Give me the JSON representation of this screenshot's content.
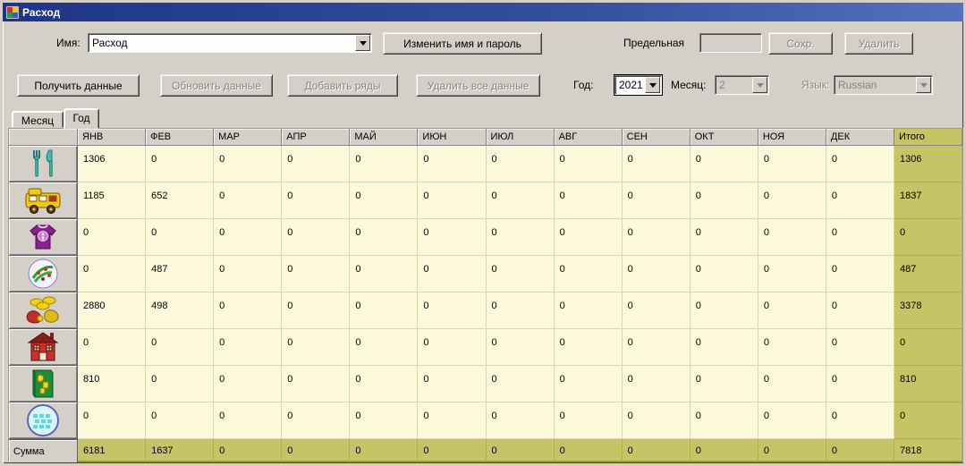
{
  "window": {
    "title": "Расход"
  },
  "toolbar": {
    "name_label": "Имя:",
    "name_value": "Расход",
    "change_name_button": "Изменить имя и пароль",
    "limit_label": "Предельная",
    "limit_value": "",
    "save_button": "Сохр.",
    "delete_button": "Удалить",
    "get_data_button": "Получить данные",
    "refresh_data_button": "Обновить данные",
    "add_rows_button": "Добавить ряды",
    "delete_all_button": "Удалить все данные",
    "year_label": "Год:",
    "year_value": "2021",
    "month_label": "Месяц:",
    "month_value": "2",
    "language_label": "Язык:",
    "language_value": "Russian"
  },
  "tabs": [
    {
      "label": "Месяц",
      "active": false
    },
    {
      "label": "Год",
      "active": true
    }
  ],
  "table": {
    "columns": [
      "ЯНВ",
      "ФЕВ",
      "МАР",
      "АПР",
      "МАЙ",
      "ИЮН",
      "ИЮЛ",
      "АВГ",
      "СЕН",
      "ОКТ",
      "НОЯ",
      "ДЕК",
      "Итого"
    ],
    "rows": [
      {
        "icon": "cutlery-icon",
        "values": [
          "1306",
          "0",
          "0",
          "0",
          "0",
          "0",
          "0",
          "0",
          "0",
          "0",
          "0",
          "0"
        ],
        "total": "1306"
      },
      {
        "icon": "bus-icon",
        "values": [
          "1185",
          "652",
          "0",
          "0",
          "0",
          "0",
          "0",
          "0",
          "0",
          "0",
          "0",
          "0"
        ],
        "total": "1837"
      },
      {
        "icon": "sweater-icon",
        "values": [
          "0",
          "0",
          "0",
          "0",
          "0",
          "0",
          "0",
          "0",
          "0",
          "0",
          "0",
          "0"
        ],
        "total": "0"
      },
      {
        "icon": "ball-icon",
        "values": [
          "0",
          "487",
          "0",
          "0",
          "0",
          "0",
          "0",
          "0",
          "0",
          "0",
          "0",
          "0"
        ],
        "total": "487"
      },
      {
        "icon": "money-icon",
        "values": [
          "2880",
          "498",
          "0",
          "0",
          "0",
          "0",
          "0",
          "0",
          "0",
          "0",
          "0",
          "0"
        ],
        "total": "3378"
      },
      {
        "icon": "house-icon",
        "values": [
          "0",
          "0",
          "0",
          "0",
          "0",
          "0",
          "0",
          "0",
          "0",
          "0",
          "0",
          "0"
        ],
        "total": "0"
      },
      {
        "icon": "book-icon",
        "values": [
          "810",
          "0",
          "0",
          "0",
          "0",
          "0",
          "0",
          "0",
          "0",
          "0",
          "0",
          "0"
        ],
        "total": "810"
      },
      {
        "icon": "globe-icon",
        "values": [
          "0",
          "0",
          "0",
          "0",
          "0",
          "0",
          "0",
          "0",
          "0",
          "0",
          "0",
          "0"
        ],
        "total": "0"
      }
    ],
    "sum_row": {
      "label": "Сумма",
      "values": [
        "6181",
        "1637",
        "0",
        "0",
        "0",
        "0",
        "0",
        "0",
        "0",
        "0",
        "0",
        "0"
      ],
      "total": "7818"
    }
  },
  "colors": {
    "titlebar": "#1f3488",
    "cell_bg": "#fbf9da",
    "total_bg": "#c6c464",
    "chrome": "#d4d0c8"
  }
}
